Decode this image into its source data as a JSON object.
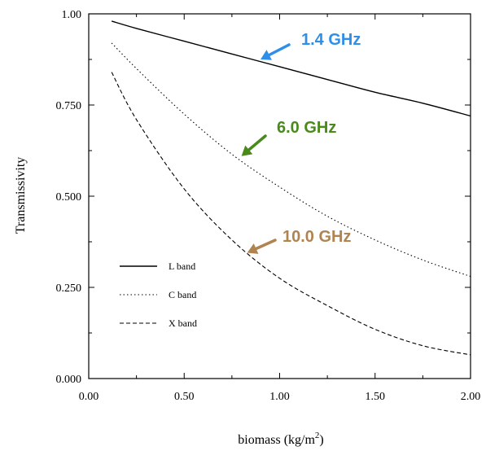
{
  "chart_data": {
    "type": "line",
    "xlabel": "biomass (kg/m",
    "xlabel_sup": "2",
    "xlabel_end": ")",
    "ylabel": "Transmissivity",
    "xlim": [
      0.0,
      2.0
    ],
    "ylim": [
      0.0,
      1.0
    ],
    "x_ticks": [
      "0.00",
      "0.50",
      "1.00",
      "1.50",
      "2.00"
    ],
    "y_ticks": [
      "0.000",
      "0.250",
      "0.500",
      "0.750",
      "1.00"
    ],
    "x_tick_values": [
      0.0,
      0.5,
      1.0,
      1.5,
      2.0
    ],
    "y_tick_values": [
      0.0,
      0.25,
      0.5,
      0.75,
      1.0
    ],
    "grid": false,
    "legend_position": "lower-left",
    "series": [
      {
        "name": "L band",
        "style": "solid",
        "x": [
          0.12,
          0.25,
          0.5,
          0.75,
          1.0,
          1.25,
          1.5,
          1.75,
          2.0
        ],
        "y": [
          0.98,
          0.96,
          0.925,
          0.89,
          0.855,
          0.82,
          0.785,
          0.755,
          0.72
        ]
      },
      {
        "name": "C band",
        "style": "dotted",
        "x": [
          0.12,
          0.25,
          0.5,
          0.75,
          1.0,
          1.25,
          1.5,
          1.75,
          2.0
        ],
        "y": [
          0.92,
          0.85,
          0.725,
          0.615,
          0.525,
          0.445,
          0.38,
          0.325,
          0.28
        ]
      },
      {
        "name": "X band",
        "style": "dashed",
        "x": [
          0.12,
          0.25,
          0.5,
          0.75,
          1.0,
          1.25,
          1.5,
          1.75,
          2.0
        ],
        "y": [
          0.84,
          0.71,
          0.52,
          0.38,
          0.275,
          0.2,
          0.135,
          0.09,
          0.065
        ]
      }
    ],
    "annotations": [
      {
        "text": "1.4 GHz",
        "color": "#2f8fe8",
        "points_to": {
          "x": 0.9,
          "y": 0.875
        }
      },
      {
        "text": "6.0 GHz",
        "color": "#4a8a1c",
        "points_to": {
          "x": 0.8,
          "y": 0.61
        }
      },
      {
        "text": "10.0 GHz",
        "color": "#b08450",
        "points_to": {
          "x": 0.83,
          "y": 0.345
        }
      }
    ]
  }
}
